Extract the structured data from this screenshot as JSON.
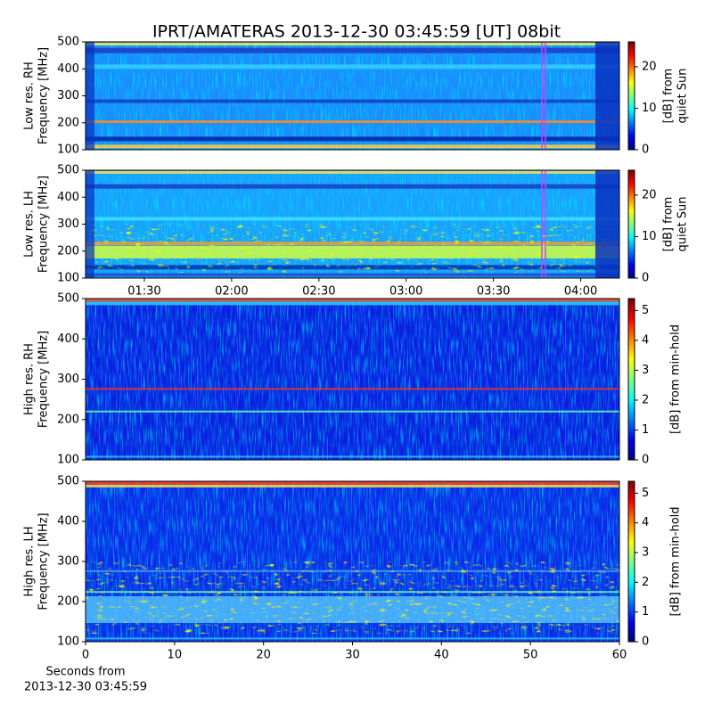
{
  "title": "IPRT/AMATERAS 2013-12-30 03:45:59 [UT]   08bit",
  "chart_data": [
    {
      "type": "heatmap",
      "ylabel": [
        "Low res. RH",
        "Frequency [MHz]"
      ],
      "ylim": [
        100,
        500
      ],
      "yticks": [
        100,
        200,
        300,
        400,
        500
      ],
      "colormap": "jet",
      "clim": [
        0,
        26
      ],
      "cticks": [
        0,
        10,
        20
      ],
      "colorbar_label": [
        "[dB] from",
        "quiet Sun"
      ]
    },
    {
      "type": "heatmap",
      "ylabel": [
        "Low res. LH",
        "Frequency [MHz]"
      ],
      "ylim": [
        100,
        500
      ],
      "yticks": [
        100,
        200,
        300,
        400,
        500
      ],
      "xlim": [
        69.8,
        253.3
      ],
      "xticks": [
        {
          "value": 90,
          "label": "01:30"
        },
        {
          "value": 120,
          "label": "02:00"
        },
        {
          "value": 150,
          "label": "02:30"
        },
        {
          "value": 180,
          "label": "03:00"
        },
        {
          "value": 210,
          "label": "03:30"
        },
        {
          "value": 240,
          "label": "04:00"
        }
      ],
      "colormap": "jet",
      "clim": [
        0,
        26
      ],
      "cticks": [
        0,
        10,
        20
      ],
      "colorbar_label": [
        "[dB] from",
        "quiet Sun"
      ]
    },
    {
      "type": "heatmap",
      "ylabel": [
        "High res. RH",
        "Frequency [MHz]"
      ],
      "ylim": [
        100,
        500
      ],
      "yticks": [
        100,
        200,
        300,
        400,
        500
      ],
      "colormap": "jet",
      "clim": [
        0,
        5.4
      ],
      "cticks": [
        0,
        1,
        2,
        3,
        4,
        5
      ],
      "colorbar_label": [
        "[dB] from min-hold"
      ]
    },
    {
      "type": "heatmap",
      "ylabel": [
        "High res. LH",
        "Frequency [MHz]"
      ],
      "ylim": [
        100,
        500
      ],
      "yticks": [
        100,
        200,
        300,
        400,
        500
      ],
      "xlim": [
        0,
        60
      ],
      "xticks": [
        0,
        10,
        20,
        30,
        40,
        50,
        60
      ],
      "xlabel": [
        "Seconds from",
        "2013-12-30 03:45:59"
      ],
      "colormap": "jet",
      "clim": [
        0,
        5.4
      ],
      "cticks": [
        0,
        1,
        2,
        3,
        4,
        5
      ],
      "colorbar_label": [
        "[dB] from min-hold"
      ]
    }
  ]
}
